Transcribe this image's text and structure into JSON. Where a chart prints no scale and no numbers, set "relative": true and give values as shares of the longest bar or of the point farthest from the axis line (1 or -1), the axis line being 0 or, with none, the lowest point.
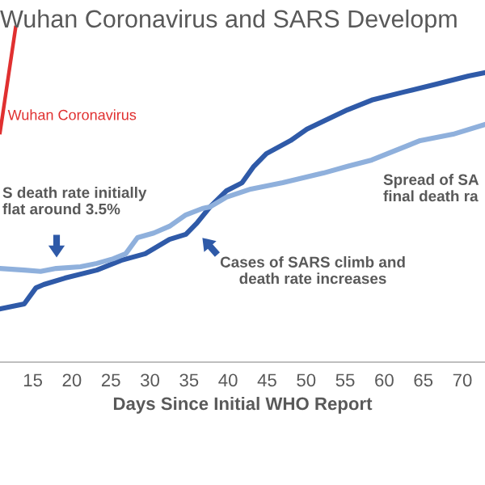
{
  "chart_data": {
    "type": "line",
    "title": "Wuhan Coronavirus and SARS Developm",
    "xlabel": "Days Since Initial WHO Report",
    "relative": true,
    "xlim": [
      10.8,
      72.9
    ],
    "xticks": [
      15,
      20,
      25,
      30,
      35,
      40,
      45,
      50,
      55,
      60,
      65,
      70
    ],
    "grid": false,
    "legend": false,
    "marker": "none",
    "line_style": "solid",
    "series": [
      {
        "name": "Wuhan Coronavirus",
        "color": "#e03030",
        "x": [
          10.8,
          12.8
        ],
        "values": [
          0.686,
          1.0
        ]
      },
      {
        "color": "#2f5aa8",
        "x": [
          10.8,
          13.9,
          15.4,
          16.4,
          19.1,
          23.2,
          26.3,
          29.4,
          32.5,
          34.6,
          36.0,
          37.7,
          39.8,
          41.8,
          43.3,
          44.9,
          48.0,
          50.1,
          52.2,
          55.3,
          58.4,
          62.5,
          66.7,
          70.8,
          72.9
        ],
        "values": [
          0.159,
          0.174,
          0.222,
          0.232,
          0.251,
          0.275,
          0.304,
          0.324,
          0.367,
          0.382,
          0.415,
          0.464,
          0.512,
          0.536,
          0.585,
          0.623,
          0.662,
          0.696,
          0.72,
          0.754,
          0.783,
          0.807,
          0.831,
          0.855,
          0.865
        ]
      },
      {
        "color": "#8fb0dc",
        "x": [
          10.8,
          13.9,
          16.0,
          18.0,
          21.1,
          23.2,
          25.3,
          26.9,
          28.4,
          30.5,
          32.5,
          34.6,
          36.7,
          37.7,
          39.8,
          42.9,
          47.0,
          52.2,
          55.3,
          58.4,
          64.6,
          68.8,
          72.9
        ],
        "values": [
          0.28,
          0.275,
          0.271,
          0.28,
          0.285,
          0.295,
          0.309,
          0.324,
          0.372,
          0.386,
          0.406,
          0.44,
          0.459,
          0.464,
          0.493,
          0.517,
          0.536,
          0.565,
          0.585,
          0.604,
          0.662,
          0.681,
          0.71
        ]
      }
    ],
    "annotations": [
      "S death rate initially\nflat around 3.5%",
      "Cases of SARS climb and\ndeath rate increases",
      "Spread of SA\nfinal death ra"
    ]
  }
}
